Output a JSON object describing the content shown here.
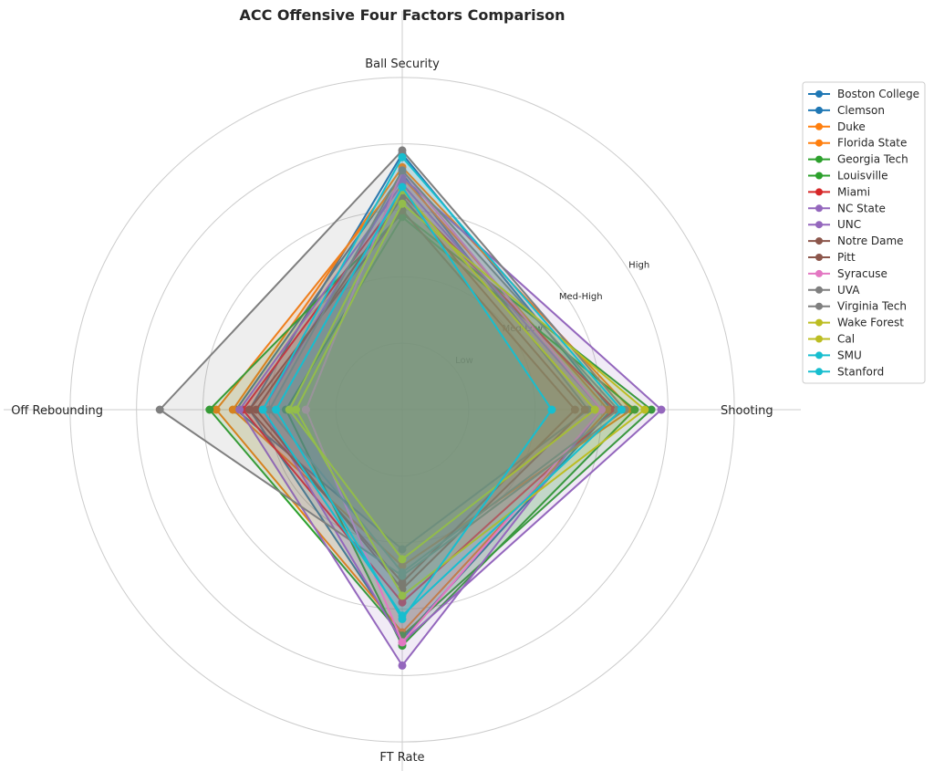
{
  "chart_data": {
    "type": "radar",
    "title": "ACC Offensive Four Factors Comparison",
    "axes": [
      "Shooting",
      "Ball Security",
      "Off Rebounding",
      "FT Rate"
    ],
    "rlim": [
      0,
      1.2
    ],
    "ring_values": [
      0.2,
      0.4,
      0.6,
      0.8,
      1.0
    ],
    "ring_labels": [
      "Low",
      "Med-Low",
      "Med-High",
      "High"
    ],
    "grid": true,
    "legend_position": "right",
    "series": [
      {
        "name": "Boston College",
        "color": "#1f77b4",
        "values": [
          0.56,
          0.71,
          0.5,
          0.42
        ]
      },
      {
        "name": "Clemson",
        "color": "#1f77b4",
        "values": [
          0.63,
          0.77,
          0.46,
          0.69
        ]
      },
      {
        "name": "Duke",
        "color": "#ff7f0e",
        "values": [
          0.62,
          0.7,
          0.56,
          0.67
        ]
      },
      {
        "name": "Florida State",
        "color": "#ff7f0e",
        "values": [
          0.69,
          0.73,
          0.51,
          0.47
        ]
      },
      {
        "name": "Georgia Tech",
        "color": "#2ca02c",
        "values": [
          0.7,
          0.58,
          0.35,
          0.71
        ]
      },
      {
        "name": "Louisville",
        "color": "#2ca02c",
        "values": [
          0.75,
          0.59,
          0.58,
          0.68
        ]
      },
      {
        "name": "Miami",
        "color": "#d62728",
        "values": [
          0.64,
          0.65,
          0.48,
          0.58
        ]
      },
      {
        "name": "NC State",
        "color": "#9467bd",
        "values": [
          0.78,
          0.7,
          0.42,
          0.7
        ]
      },
      {
        "name": "UNC",
        "color": "#9467bd",
        "values": [
          0.6,
          0.68,
          0.49,
          0.77
        ]
      },
      {
        "name": "Notre Dame",
        "color": "#8c564b",
        "values": [
          0.52,
          0.6,
          0.46,
          0.52
        ]
      },
      {
        "name": "Pitt",
        "color": "#8c564b",
        "values": [
          0.55,
          0.64,
          0.44,
          0.54
        ]
      },
      {
        "name": "Syracuse",
        "color": "#e377c2",
        "values": [
          0.6,
          0.72,
          0.29,
          0.7
        ]
      },
      {
        "name": "UVA",
        "color": "#7f7f7f",
        "values": [
          0.67,
          0.78,
          0.73,
          0.5
        ]
      },
      {
        "name": "Virginia Tech",
        "color": "#7f7f7f",
        "values": [
          0.65,
          0.72,
          0.4,
          0.49
        ]
      },
      {
        "name": "Wake Forest",
        "color": "#bcbd22",
        "values": [
          0.58,
          0.66,
          0.34,
          0.45
        ]
      },
      {
        "name": "Cal",
        "color": "#bcbd22",
        "values": [
          0.73,
          0.62,
          0.32,
          0.56
        ]
      },
      {
        "name": "SMU",
        "color": "#17becf",
        "values": [
          0.66,
          0.76,
          0.42,
          0.62
        ]
      },
      {
        "name": "Stanford",
        "color": "#17becf",
        "values": [
          0.45,
          0.67,
          0.38,
          0.63
        ]
      }
    ]
  }
}
